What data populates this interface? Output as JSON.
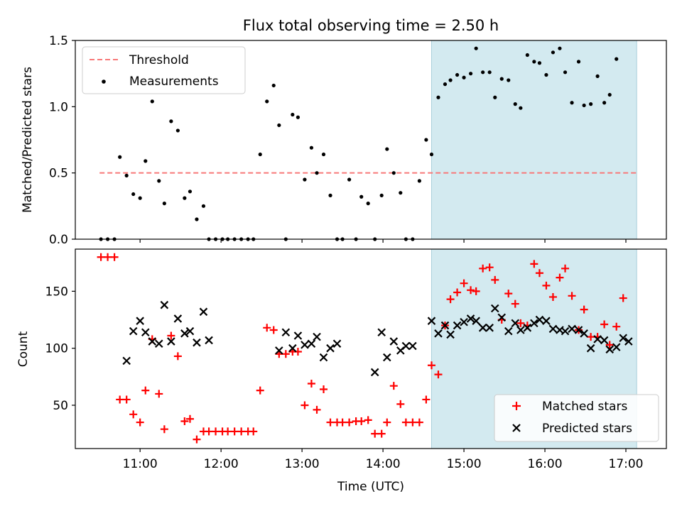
{
  "chart_data": [
    {
      "type": "scatter",
      "title": "Flux total observing time = 2.50 h",
      "xlabel": "",
      "ylabel": "Matched/Predicted stars",
      "xlim": [
        "10:12",
        "17:30"
      ],
      "ylim": [
        0,
        1.5
      ],
      "yticks": [
        "0.0",
        "0.5",
        "1.0",
        "1.5"
      ],
      "threshold": {
        "label": "Threshold",
        "value": 0.5,
        "x_start": "10:30",
        "x_end": "17:08",
        "color": "#f87878"
      },
      "highlight": {
        "start": "14:36",
        "end": "17:08",
        "color": "#d3eaf0"
      },
      "legend": {
        "placement": "top-left",
        "entries": [
          "Threshold",
          "Measurements"
        ]
      },
      "series": [
        {
          "name": "Measurements",
          "color": "#000000",
          "points": [
            [
              "10:31",
              0
            ],
            [
              "10:36",
              0
            ],
            [
              "10:41",
              0
            ],
            [
              "10:45",
              0.62
            ],
            [
              "10:50",
              0.48
            ],
            [
              "10:55",
              0.34
            ],
            [
              "11:00",
              0.31
            ],
            [
              "11:04",
              0.59
            ],
            [
              "11:09",
              1.04
            ],
            [
              "11:14",
              0.44
            ],
            [
              "11:18",
              0.27
            ],
            [
              "11:23",
              0.89
            ],
            [
              "11:28",
              0.82
            ],
            [
              "11:33",
              0.31
            ],
            [
              "11:37",
              0.36
            ],
            [
              "11:42",
              0.15
            ],
            [
              "11:47",
              0.25
            ],
            [
              "11:51",
              0
            ],
            [
              "11:56",
              0
            ],
            [
              "12:01",
              0
            ],
            [
              "12:05",
              0
            ],
            [
              "12:10",
              0
            ],
            [
              "12:15",
              0
            ],
            [
              "12:20",
              0
            ],
            [
              "12:24",
              0
            ],
            [
              "12:29",
              0.64
            ],
            [
              "12:34",
              1.04
            ],
            [
              "12:39",
              1.16
            ],
            [
              "12:43",
              0.86
            ],
            [
              "12:48",
              0
            ],
            [
              "12:53",
              0.94
            ],
            [
              "12:57",
              0.92
            ],
            [
              "13:02",
              0.45
            ],
            [
              "13:07",
              0.69
            ],
            [
              "13:11",
              0.5
            ],
            [
              "13:16",
              0.64
            ],
            [
              "13:21",
              0.33
            ],
            [
              "13:26",
              0
            ],
            [
              "13:30",
              0
            ],
            [
              "13:35",
              0.45
            ],
            [
              "13:40",
              0
            ],
            [
              "13:44",
              0.32
            ],
            [
              "13:49",
              0.27
            ],
            [
              "13:54",
              0
            ],
            [
              "13:59",
              0.33
            ],
            [
              "14:03",
              0.68
            ],
            [
              "14:08",
              0.5
            ],
            [
              "14:13",
              0.35
            ],
            [
              "14:17",
              0
            ],
            [
              "14:22",
              0
            ],
            [
              "14:27",
              0.44
            ],
            [
              "14:32",
              0.75
            ],
            [
              "14:36",
              0.64
            ],
            [
              "14:41",
              1.07
            ],
            [
              "14:46",
              1.17
            ],
            [
              "14:50",
              1.2
            ],
            [
              "14:55",
              1.24
            ],
            [
              "15:00",
              1.22
            ],
            [
              "15:05",
              1.25
            ],
            [
              "15:09",
              1.44
            ],
            [
              "15:14",
              1.26
            ],
            [
              "15:19",
              1.26
            ],
            [
              "15:23",
              1.07
            ],
            [
              "15:28",
              1.21
            ],
            [
              "15:33",
              1.2
            ],
            [
              "15:38",
              1.02
            ],
            [
              "15:42",
              0.99
            ],
            [
              "15:47",
              1.39
            ],
            [
              "15:52",
              1.34
            ],
            [
              "15:56",
              1.33
            ],
            [
              "16:01",
              1.24
            ],
            [
              "16:06",
              1.41
            ],
            [
              "16:11",
              1.44
            ],
            [
              "16:15",
              1.26
            ],
            [
              "16:20",
              1.03
            ],
            [
              "16:25",
              1.34
            ],
            [
              "16:29",
              1.01
            ],
            [
              "16:34",
              1.02
            ],
            [
              "16:39",
              1.23
            ],
            [
              "16:44",
              1.03
            ],
            [
              "16:48",
              1.09
            ],
            [
              "16:53",
              1.36
            ]
          ]
        }
      ]
    },
    {
      "type": "scatter",
      "title": "",
      "xlabel": "Time (UTC)",
      "ylabel": "Count",
      "xlim": [
        "10:12",
        "17:30"
      ],
      "ylim": [
        12,
        187
      ],
      "yticks": [
        "50",
        "100",
        "150"
      ],
      "xticks": [
        "11:00",
        "12:00",
        "13:00",
        "14:00",
        "15:00",
        "16:00",
        "17:00"
      ],
      "highlight": {
        "start": "14:36",
        "end": "17:08",
        "color": "#d3eaf0"
      },
      "legend": {
        "placement": "bottom-right",
        "entries": [
          "Matched stars",
          "Predicted stars"
        ]
      },
      "series": [
        {
          "name": "Matched stars",
          "marker": "plus",
          "color": "#ff0000",
          "points": [
            [
              "10:31",
              180
            ],
            [
              "10:36",
              180
            ],
            [
              "10:41",
              180
            ],
            [
              "10:45",
              55
            ],
            [
              "10:50",
              55
            ],
            [
              "10:55",
              42
            ],
            [
              "11:00",
              35
            ],
            [
              "11:04",
              63
            ],
            [
              "11:09",
              108
            ],
            [
              "11:14",
              60
            ],
            [
              "11:18",
              29
            ],
            [
              "11:23",
              111
            ],
            [
              "11:28",
              93
            ],
            [
              "11:33",
              36
            ],
            [
              "11:37",
              38
            ],
            [
              "11:42",
              20
            ],
            [
              "11:47",
              27
            ],
            [
              "11:51",
              27
            ],
            [
              "11:56",
              27
            ],
            [
              "12:01",
              27
            ],
            [
              "12:05",
              27
            ],
            [
              "12:10",
              27
            ],
            [
              "12:15",
              27
            ],
            [
              "12:20",
              27
            ],
            [
              "12:24",
              27
            ],
            [
              "12:29",
              63
            ],
            [
              "12:34",
              118
            ],
            [
              "12:39",
              116
            ],
            [
              "12:43",
              95
            ],
            [
              "12:48",
              95
            ],
            [
              "12:53",
              97
            ],
            [
              "12:57",
              97
            ],
            [
              "13:02",
              50
            ],
            [
              "13:07",
              69
            ],
            [
              "13:11",
              46
            ],
            [
              "13:16",
              64
            ],
            [
              "13:21",
              35
            ],
            [
              "13:26",
              35
            ],
            [
              "13:30",
              35
            ],
            [
              "13:35",
              35
            ],
            [
              "13:40",
              36
            ],
            [
              "13:44",
              36
            ],
            [
              "13:49",
              37
            ],
            [
              "13:54",
              25
            ],
            [
              "13:59",
              25
            ],
            [
              "14:03",
              35
            ],
            [
              "14:08",
              67
            ],
            [
              "14:13",
              51
            ],
            [
              "14:17",
              35
            ],
            [
              "14:22",
              35
            ],
            [
              "14:27",
              35
            ],
            [
              "14:32",
              55
            ],
            [
              "14:36",
              85
            ],
            [
              "14:41",
              77
            ],
            [
              "14:46",
              120
            ],
            [
              "14:50",
              143
            ],
            [
              "14:55",
              149
            ],
            [
              "15:00",
              157
            ],
            [
              "15:05",
              151
            ],
            [
              "15:09",
              150
            ],
            [
              "15:14",
              170
            ],
            [
              "15:19",
              171
            ],
            [
              "15:23",
              160
            ],
            [
              "15:28",
              125
            ],
            [
              "15:33",
              148
            ],
            [
              "15:38",
              139
            ],
            [
              "15:42",
              122
            ],
            [
              "15:47",
              120
            ],
            [
              "15:52",
              174
            ],
            [
              "15:56",
              166
            ],
            [
              "16:01",
              155
            ],
            [
              "16:06",
              145
            ],
            [
              "16:11",
              162
            ],
            [
              "16:15",
              170
            ],
            [
              "16:20",
              146
            ],
            [
              "16:25",
              116
            ],
            [
              "16:29",
              134
            ],
            [
              "16:34",
              110
            ],
            [
              "16:39",
              110
            ],
            [
              "16:44",
              121
            ],
            [
              "16:48",
              103
            ],
            [
              "16:53",
              119
            ],
            [
              "16:58",
              144
            ]
          ]
        },
        {
          "name": "Predicted stars",
          "marker": "x",
          "color": "#000000",
          "points": [
            [
              "10:50",
              89
            ],
            [
              "10:55",
              115
            ],
            [
              "11:00",
              124
            ],
            [
              "11:04",
              114
            ],
            [
              "11:09",
              106
            ],
            [
              "11:14",
              104
            ],
            [
              "11:18",
              138
            ],
            [
              "11:23",
              106
            ],
            [
              "11:28",
              126
            ],
            [
              "11:33",
              113
            ],
            [
              "11:37",
              115
            ],
            [
              "11:42",
              105
            ],
            [
              "11:47",
              132
            ],
            [
              "11:51",
              107
            ],
            [
              "12:43",
              98
            ],
            [
              "12:48",
              114
            ],
            [
              "12:53",
              100
            ],
            [
              "12:57",
              111
            ],
            [
              "13:02",
              103
            ],
            [
              "13:07",
              104
            ],
            [
              "13:11",
              110
            ],
            [
              "13:16",
              92
            ],
            [
              "13:21",
              100
            ],
            [
              "13:26",
              104
            ],
            [
              "13:54",
              79
            ],
            [
              "13:59",
              114
            ],
            [
              "14:03",
              92
            ],
            [
              "14:08",
              106
            ],
            [
              "14:13",
              98
            ],
            [
              "14:17",
              102
            ],
            [
              "14:22",
              102
            ],
            [
              "14:36",
              124
            ],
            [
              "14:41",
              113
            ],
            [
              "14:46",
              120
            ],
            [
              "14:50",
              112
            ],
            [
              "14:55",
              120
            ],
            [
              "15:00",
              123
            ],
            [
              "15:05",
              126
            ],
            [
              "15:09",
              124
            ],
            [
              "15:14",
              118
            ],
            [
              "15:19",
              118
            ],
            [
              "15:23",
              135
            ],
            [
              "15:28",
              127
            ],
            [
              "15:33",
              115
            ],
            [
              "15:38",
              122
            ],
            [
              "15:42",
              116
            ],
            [
              "15:47",
              118
            ],
            [
              "15:52",
              122
            ],
            [
              "15:56",
              125
            ],
            [
              "16:01",
              124
            ],
            [
              "16:06",
              117
            ],
            [
              "16:11",
              116
            ],
            [
              "16:15",
              115
            ],
            [
              "16:20",
              117
            ],
            [
              "16:25",
              116
            ],
            [
              "16:29",
              113
            ],
            [
              "16:34",
              100
            ],
            [
              "16:39",
              108
            ],
            [
              "16:44",
              107
            ],
            [
              "16:48",
              99
            ],
            [
              "16:53",
              101
            ],
            [
              "16:58",
              109
            ],
            [
              "17:02",
              106
            ]
          ]
        }
      ]
    }
  ]
}
